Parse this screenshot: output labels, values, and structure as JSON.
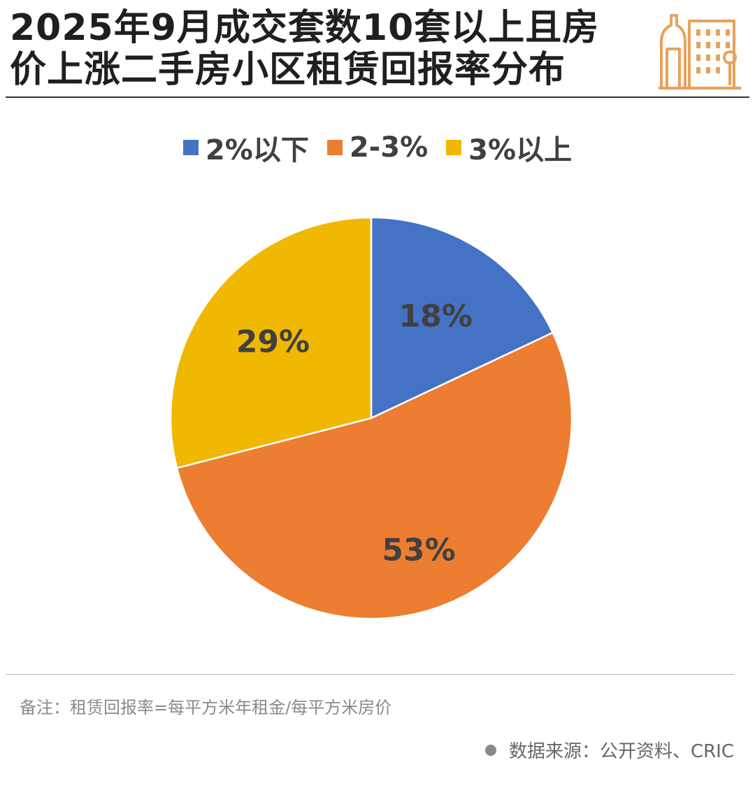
{
  "header": {
    "title_line1": "2025年9月成交套数10套以上且房",
    "title_line2": "价上涨二手房小区租赁回报率分布"
  },
  "icons": {
    "header_icon": "building-icon",
    "source_bullet": "dot-icon"
  },
  "chart_data": {
    "type": "pie",
    "categories": [
      "2%以下",
      "2-3%",
      "3%以上"
    ],
    "values": [
      18,
      53,
      29
    ],
    "data_labels": [
      "18%",
      "53%",
      "29%"
    ],
    "colors": [
      "#4472C4",
      "#ED7D31",
      "#F0B800"
    ],
    "legend_position": "top",
    "start_angle": "12 o'clock",
    "direction": "clockwise"
  },
  "footer": {
    "note": "备注：租赁回报率=每平方米年租金/每平方米房价",
    "source": "数据来源：公开资料、CRIC"
  },
  "colors": {
    "accent": "#E8A15C",
    "title_text": "#1f1f1f",
    "footnote_text": "#8a8a8a",
    "label_text": "#404040"
  }
}
